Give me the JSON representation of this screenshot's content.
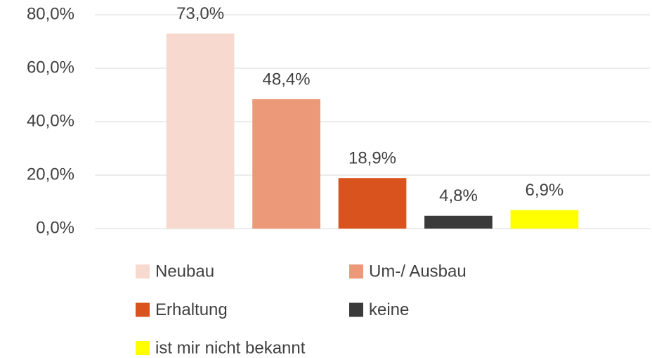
{
  "chart_data": {
    "type": "bar",
    "categories": [
      null
    ],
    "series": [
      {
        "name": "Neubau",
        "color": "#f8d9cf",
        "values": [
          73.0
        ],
        "value_labels": [
          "73,0%"
        ]
      },
      {
        "name": "Um-/ Ausbau",
        "color": "#eb9978",
        "values": [
          48.4
        ],
        "value_labels": [
          "48,4%"
        ]
      },
      {
        "name": "Erhaltung",
        "color": "#d9531e",
        "values": [
          18.9
        ],
        "value_labels": [
          "18,9%"
        ]
      },
      {
        "name": "keine",
        "color": "#3a3a3a",
        "values": [
          4.8
        ],
        "value_labels": [
          "4,8%"
        ]
      },
      {
        "name": "ist mir nicht bekannt",
        "color": "#ffff00",
        "values": [
          6.9
        ],
        "value_labels": [
          "6,9%"
        ]
      }
    ],
    "ylim": [
      0,
      80
    ],
    "yticks": [
      {
        "value": 0,
        "label": "0,0%"
      },
      {
        "value": 20,
        "label": "20,0%"
      },
      {
        "value": 40,
        "label": "40,0%"
      },
      {
        "value": 60,
        "label": "60,0%"
      },
      {
        "value": 80,
        "label": "80,0%"
      }
    ],
    "grid": true,
    "legend": "bottom"
  }
}
